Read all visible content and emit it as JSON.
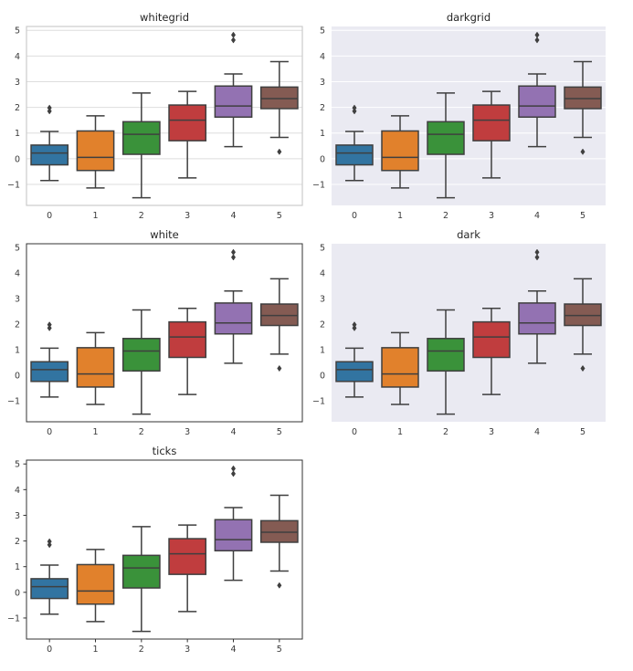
{
  "figure": {
    "panel_styles": [
      "whitegrid",
      "darkgrid",
      "white",
      "dark",
      "ticks"
    ]
  },
  "palette": [
    "#3274a1",
    "#e1812c",
    "#3a923a",
    "#c03d3e",
    "#9372b2",
    "#845b53"
  ],
  "colors": {
    "line": "#3f3f3f",
    "dark_bg": "#eaeaf2",
    "white_bg": "#ffffff",
    "grid_light": "#dddddd",
    "grid_on_dark": "#ffffff",
    "spine_light": "#cccccc",
    "spine_dark": "#333333"
  },
  "chart_data": [
    {
      "type": "box",
      "title": "whitegrid",
      "style": "whitegrid",
      "grid": true,
      "categories": [
        "0",
        "1",
        "2",
        "3",
        "4",
        "5"
      ],
      "yticks": [
        "5",
        "4",
        "3",
        "2",
        "1",
        "0",
        "−1"
      ],
      "ylim": [
        -1.82,
        5.15
      ],
      "boxes": [
        {
          "q1": -0.24,
          "median": 0.22,
          "q3": 0.53,
          "whislo": -0.85,
          "whishi": 1.06,
          "fliers": [
            1.85,
            1.98
          ]
        },
        {
          "q1": -0.46,
          "median": 0.05,
          "q3": 1.08,
          "whislo": -1.14,
          "whishi": 1.67,
          "fliers": []
        },
        {
          "q1": 0.17,
          "median": 0.95,
          "q3": 1.44,
          "whislo": -1.52,
          "whishi": 2.56,
          "fliers": []
        },
        {
          "q1": 0.7,
          "median": 1.5,
          "q3": 2.09,
          "whislo": -0.75,
          "whishi": 2.62,
          "fliers": []
        },
        {
          "q1": 1.62,
          "median": 2.05,
          "q3": 2.83,
          "whislo": 0.47,
          "whishi": 3.3,
          "fliers": [
            4.62,
            4.82
          ]
        },
        {
          "q1": 1.95,
          "median": 2.34,
          "q3": 2.79,
          "whislo": 0.83,
          "whishi": 3.78,
          "fliers": [
            0.27
          ]
        }
      ]
    },
    {
      "type": "box",
      "title": "darkgrid",
      "style": "darkgrid",
      "grid": true,
      "categories": [
        "0",
        "1",
        "2",
        "3",
        "4",
        "5"
      ],
      "yticks": [
        "5",
        "4",
        "3",
        "2",
        "1",
        "0",
        "−1"
      ],
      "ylim": [
        -1.82,
        5.15
      ],
      "boxes": [
        {
          "q1": -0.24,
          "median": 0.22,
          "q3": 0.53,
          "whislo": -0.85,
          "whishi": 1.06,
          "fliers": [
            1.85,
            1.98
          ]
        },
        {
          "q1": -0.46,
          "median": 0.05,
          "q3": 1.08,
          "whislo": -1.14,
          "whishi": 1.67,
          "fliers": []
        },
        {
          "q1": 0.17,
          "median": 0.95,
          "q3": 1.44,
          "whislo": -1.52,
          "whishi": 2.56,
          "fliers": []
        },
        {
          "q1": 0.7,
          "median": 1.5,
          "q3": 2.09,
          "whislo": -0.75,
          "whishi": 2.62,
          "fliers": []
        },
        {
          "q1": 1.62,
          "median": 2.05,
          "q3": 2.83,
          "whislo": 0.47,
          "whishi": 3.3,
          "fliers": [
            4.62,
            4.82
          ]
        },
        {
          "q1": 1.95,
          "median": 2.34,
          "q3": 2.79,
          "whislo": 0.83,
          "whishi": 3.78,
          "fliers": [
            0.27
          ]
        }
      ]
    },
    {
      "type": "box",
      "title": "white",
      "style": "white",
      "grid": false,
      "categories": [
        "0",
        "1",
        "2",
        "3",
        "4",
        "5"
      ],
      "yticks": [
        "5",
        "4",
        "3",
        "2",
        "1",
        "0",
        "−1"
      ],
      "ylim": [
        -1.82,
        5.15
      ],
      "boxes": [
        {
          "q1": -0.24,
          "median": 0.22,
          "q3": 0.53,
          "whislo": -0.85,
          "whishi": 1.06,
          "fliers": [
            1.85,
            1.98
          ]
        },
        {
          "q1": -0.46,
          "median": 0.05,
          "q3": 1.08,
          "whislo": -1.14,
          "whishi": 1.67,
          "fliers": []
        },
        {
          "q1": 0.17,
          "median": 0.95,
          "q3": 1.44,
          "whislo": -1.52,
          "whishi": 2.56,
          "fliers": []
        },
        {
          "q1": 0.7,
          "median": 1.5,
          "q3": 2.09,
          "whislo": -0.75,
          "whishi": 2.62,
          "fliers": []
        },
        {
          "q1": 1.62,
          "median": 2.05,
          "q3": 2.83,
          "whislo": 0.47,
          "whishi": 3.3,
          "fliers": [
            4.62,
            4.82
          ]
        },
        {
          "q1": 1.95,
          "median": 2.34,
          "q3": 2.79,
          "whislo": 0.83,
          "whishi": 3.78,
          "fliers": [
            0.27
          ]
        }
      ]
    },
    {
      "type": "box",
      "title": "dark",
      "style": "dark",
      "grid": false,
      "categories": [
        "0",
        "1",
        "2",
        "3",
        "4",
        "5"
      ],
      "yticks": [
        "5",
        "4",
        "3",
        "2",
        "1",
        "0",
        "−1"
      ],
      "ylim": [
        -1.82,
        5.15
      ],
      "boxes": [
        {
          "q1": -0.24,
          "median": 0.22,
          "q3": 0.53,
          "whislo": -0.85,
          "whishi": 1.06,
          "fliers": [
            1.85,
            1.98
          ]
        },
        {
          "q1": -0.46,
          "median": 0.05,
          "q3": 1.08,
          "whislo": -1.14,
          "whishi": 1.67,
          "fliers": []
        },
        {
          "q1": 0.17,
          "median": 0.95,
          "q3": 1.44,
          "whislo": -1.52,
          "whishi": 2.56,
          "fliers": []
        },
        {
          "q1": 0.7,
          "median": 1.5,
          "q3": 2.09,
          "whislo": -0.75,
          "whishi": 2.62,
          "fliers": []
        },
        {
          "q1": 1.62,
          "median": 2.05,
          "q3": 2.83,
          "whislo": 0.47,
          "whishi": 3.3,
          "fliers": [
            4.62,
            4.82
          ]
        },
        {
          "q1": 1.95,
          "median": 2.34,
          "q3": 2.79,
          "whislo": 0.83,
          "whishi": 3.78,
          "fliers": [
            0.27
          ]
        }
      ]
    },
    {
      "type": "box",
      "title": "ticks",
      "style": "ticks",
      "grid": false,
      "categories": [
        "0",
        "1",
        "2",
        "3",
        "4",
        "5"
      ],
      "yticks": [
        "5",
        "4",
        "3",
        "2",
        "1",
        "0",
        "−1"
      ],
      "ylim": [
        -1.82,
        5.15
      ],
      "boxes": [
        {
          "q1": -0.24,
          "median": 0.22,
          "q3": 0.53,
          "whislo": -0.85,
          "whishi": 1.06,
          "fliers": [
            1.85,
            1.98
          ]
        },
        {
          "q1": -0.46,
          "median": 0.05,
          "q3": 1.08,
          "whislo": -1.14,
          "whishi": 1.67,
          "fliers": []
        },
        {
          "q1": 0.17,
          "median": 0.95,
          "q3": 1.44,
          "whislo": -1.52,
          "whishi": 2.56,
          "fliers": []
        },
        {
          "q1": 0.7,
          "median": 1.5,
          "q3": 2.09,
          "whislo": -0.75,
          "whishi": 2.62,
          "fliers": []
        },
        {
          "q1": 1.62,
          "median": 2.05,
          "q3": 2.83,
          "whislo": 0.47,
          "whishi": 3.3,
          "fliers": [
            4.62,
            4.82
          ]
        },
        {
          "q1": 1.95,
          "median": 2.34,
          "q3": 2.79,
          "whislo": 0.83,
          "whishi": 3.78,
          "fliers": [
            0.27
          ]
        }
      ]
    }
  ]
}
